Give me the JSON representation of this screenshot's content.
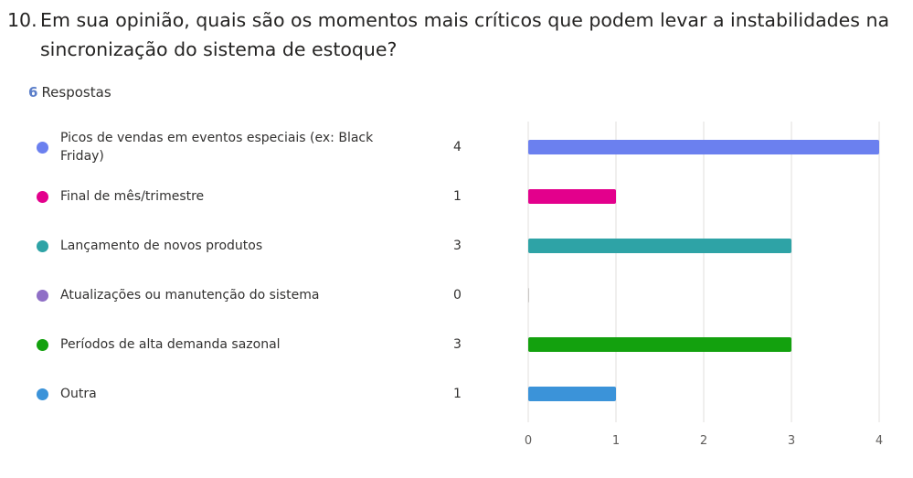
{
  "question": {
    "number": "10.",
    "text": "Em sua opinião, quais são os momentos mais críticos que podem levar a instabilidades na sincronização do sistema de estoque?"
  },
  "responses": {
    "count": "6",
    "label": "Respostas"
  },
  "chart_data": {
    "type": "bar",
    "orientation": "horizontal",
    "categories": [
      "Picos de vendas em eventos especiais (ex: Black Friday)",
      "Final de mês/trimestre",
      "Lançamento de novos produtos",
      "Atualizações ou manutenção do sistema",
      "Períodos de alta demanda sazonal",
      "Outra"
    ],
    "values": [
      4,
      1,
      3,
      0,
      3,
      1
    ],
    "colors": [
      "#6b80ef",
      "#e3008c",
      "#2ea3a6",
      "#8f6fc6",
      "#13a10e",
      "#3b93d9"
    ],
    "xlim": [
      0,
      4
    ],
    "xticks": [
      0,
      1,
      2,
      3,
      4
    ],
    "grid": true,
    "legend": "left"
  }
}
